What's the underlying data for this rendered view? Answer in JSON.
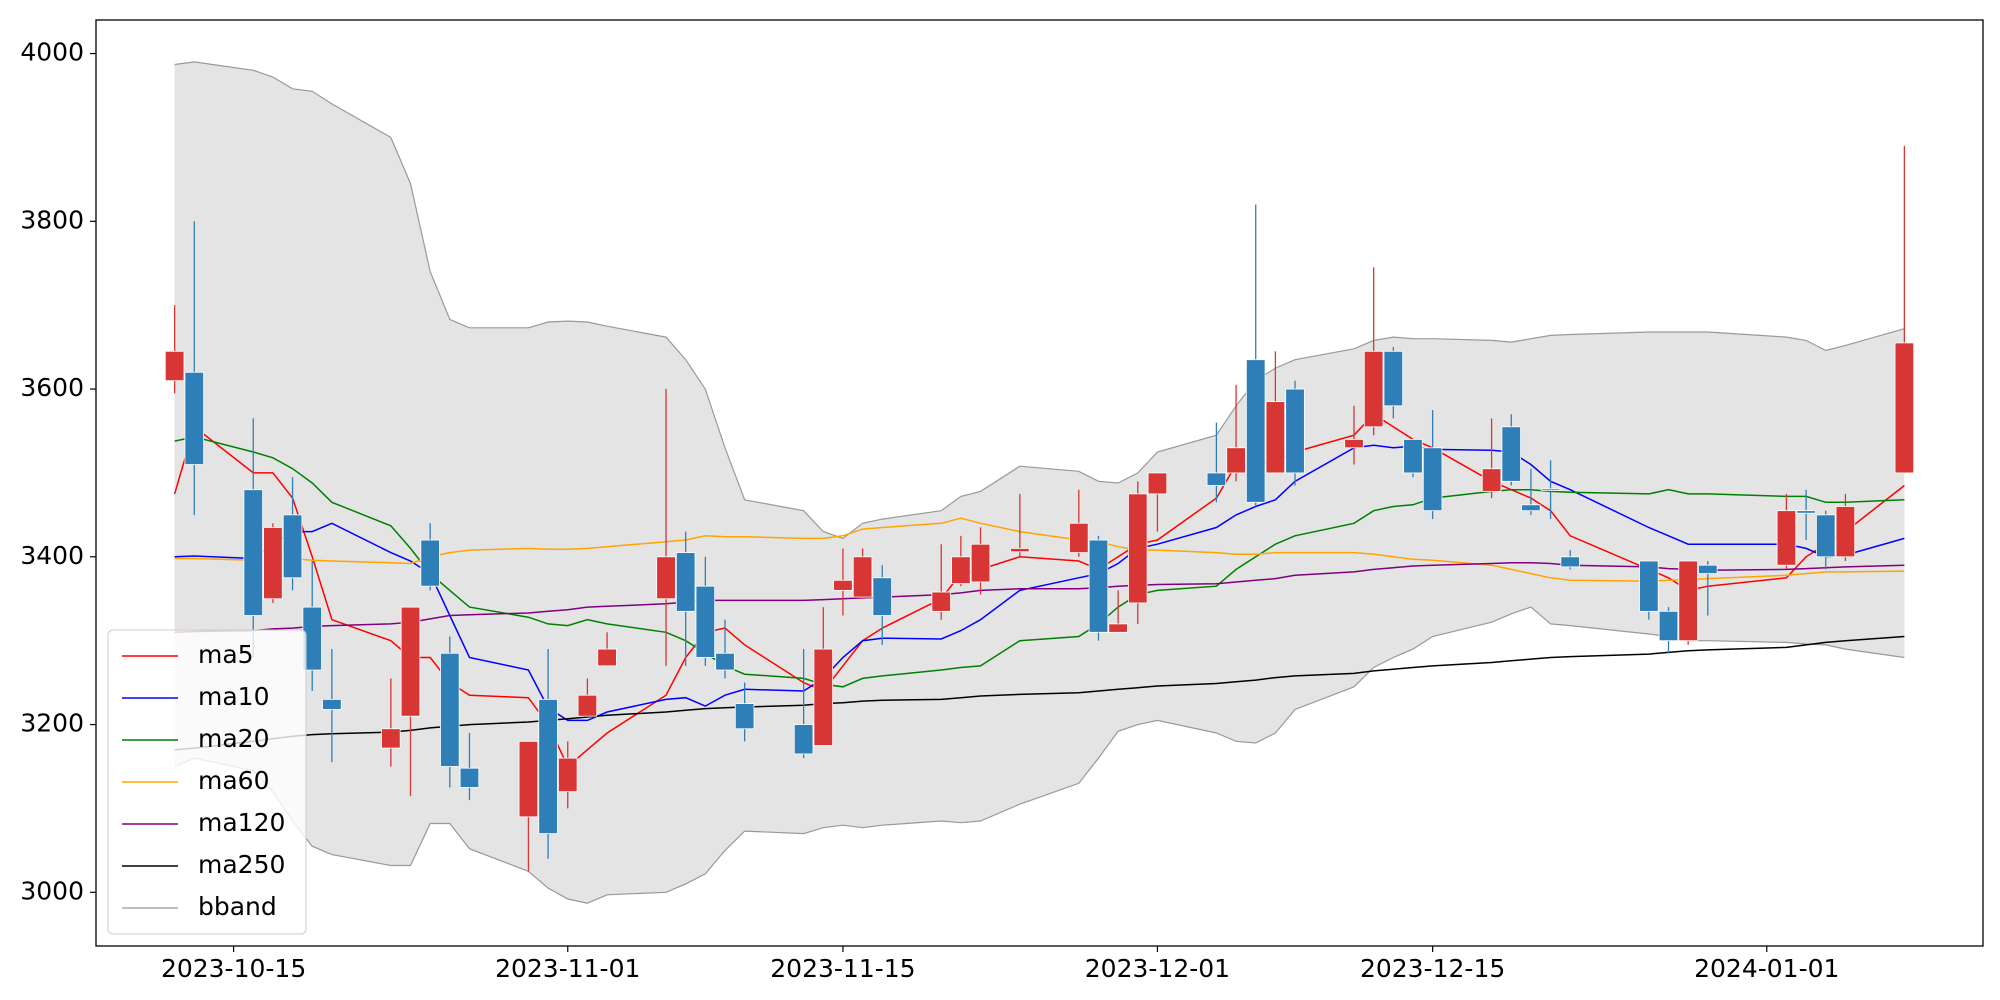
{
  "chart_data": {
    "type": "candlestick",
    "x": [
      "2023-10-12",
      "2023-10-13",
      "2023-10-16",
      "2023-10-17",
      "2023-10-18",
      "2023-10-19",
      "2023-10-20",
      "2023-10-23",
      "2023-10-24",
      "2023-10-25",
      "2023-10-26",
      "2023-10-27",
      "2023-10-30",
      "2023-10-31",
      "2023-11-01",
      "2023-11-02",
      "2023-11-03",
      "2023-11-06",
      "2023-11-07",
      "2023-11-08",
      "2023-11-09",
      "2023-11-10",
      "2023-11-13",
      "2023-11-14",
      "2023-11-15",
      "2023-11-16",
      "2023-11-17",
      "2023-11-20",
      "2023-11-21",
      "2023-11-22",
      "2023-11-24",
      "2023-11-27",
      "2023-11-28",
      "2023-11-29",
      "2023-11-30",
      "2023-12-01",
      "2023-12-04",
      "2023-12-05",
      "2023-12-06",
      "2023-12-07",
      "2023-12-08",
      "2023-12-11",
      "2023-12-12",
      "2023-12-13",
      "2023-12-14",
      "2023-12-15",
      "2023-12-18",
      "2023-12-19",
      "2023-12-20",
      "2023-12-21",
      "2023-12-22",
      "2023-12-26",
      "2023-12-27",
      "2023-12-28",
      "2023-12-29",
      "2024-01-02",
      "2024-01-03",
      "2024-01-04",
      "2024-01-05",
      "2024-01-08"
    ],
    "open": [
      3610,
      3620,
      3480,
      3350,
      3450,
      3340,
      3230,
      3172,
      3210,
      3420,
      3285,
      3148,
      3090,
      3230,
      3120,
      3210,
      3270,
      3350,
      3405,
      3365,
      3285,
      3225,
      3200,
      3175,
      3360,
      3352,
      3375,
      3335,
      3368,
      3370,
      3406,
      3405,
      3420,
      3310,
      3345,
      3475,
      3500,
      3500,
      3635,
      3500,
      3600,
      3530,
      3555,
      3645,
      3540,
      3530,
      3478,
      3555,
      3462,
      3481,
      3400,
      3395,
      3335,
      3300,
      3390,
      3390,
      3455,
      3450,
      3400,
      3500
    ],
    "high": [
      3700,
      3800,
      3565,
      3440,
      3495,
      3395,
      3290,
      3255,
      3340,
      3440,
      3305,
      3190,
      3180,
      3290,
      3180,
      3255,
      3310,
      3600,
      3430,
      3400,
      3325,
      3250,
      3290,
      3340,
      3410,
      3410,
      3390,
      3415,
      3425,
      3435,
      3475,
      3480,
      3425,
      3360,
      3490,
      3500,
      3560,
      3605,
      3820,
      3645,
      3610,
      3580,
      3745,
      3650,
      3540,
      3575,
      3565,
      3570,
      3505,
      3515,
      3408,
      3395,
      3340,
      3395,
      3395,
      3475,
      3480,
      3455,
      3475,
      3890
    ],
    "low": [
      3595,
      3450,
      3280,
      3345,
      3360,
      3240,
      3155,
      3150,
      3115,
      3360,
      3125,
      3110,
      3025,
      3040,
      3100,
      3210,
      3270,
      3270,
      3270,
      3270,
      3255,
      3180,
      3160,
      3175,
      3330,
      3350,
      3295,
      3325,
      3365,
      3355,
      3400,
      3400,
      3300,
      3310,
      3320,
      3430,
      3465,
      3490,
      3460,
      3500,
      3485,
      3510,
      3545,
      3565,
      3495,
      3445,
      3470,
      3485,
      3450,
      3445,
      3385,
      3325,
      3285,
      3295,
      3330,
      3385,
      3420,
      3385,
      3395,
      3500
    ],
    "close": [
      3645,
      3510,
      3330,
      3435,
      3375,
      3265,
      3218,
      3195,
      3340,
      3365,
      3150,
      3125,
      3180,
      3070,
      3160,
      3235,
      3290,
      3400,
      3335,
      3280,
      3265,
      3195,
      3165,
      3290,
      3372,
      3400,
      3330,
      3358,
      3400,
      3415,
      3410,
      3440,
      3310,
      3320,
      3475,
      3500,
      3485,
      3530,
      3465,
      3585,
      3500,
      3540,
      3645,
      3580,
      3500,
      3455,
      3505,
      3490,
      3455,
      3480,
      3388,
      3335,
      3300,
      3395,
      3380,
      3455,
      3452,
      3400,
      3460,
      3655
    ],
    "up_color": "#d83535",
    "down_color": "#2e7fb8",
    "series": [
      {
        "name": "ma5",
        "color": "#ff0000",
        "values": [
          3475,
          3555,
          3500,
          3500,
          3470,
          3400,
          3325,
          3300,
          3280,
          3280,
          3250,
          3235,
          3232,
          3200,
          3150,
          3170,
          3190,
          3235,
          3280,
          3310,
          3315,
          3295,
          3250,
          3240,
          3270,
          3300,
          3315,
          3350,
          3380,
          3385,
          3400,
          3395,
          3385,
          3400,
          3415,
          3420,
          3470,
          3510,
          3510,
          3515,
          3525,
          3545,
          3570,
          3555,
          3540,
          3530,
          3490,
          3480,
          3470,
          3455,
          3425,
          3385,
          3375,
          3360,
          3365,
          3375,
          3400,
          3415,
          3430,
          3485
        ]
      },
      {
        "name": "ma10",
        "color": "#0000ff",
        "values": [
          3400,
          3401,
          3398,
          3415,
          3430,
          3430,
          3440,
          3405,
          3395,
          3380,
          3330,
          3280,
          3265,
          3220,
          3205,
          3205,
          3215,
          3230,
          3232,
          3222,
          3235,
          3242,
          3240,
          3255,
          3280,
          3300,
          3303,
          3302,
          3312,
          3325,
          3360,
          3375,
          3380,
          3392,
          3410,
          3415,
          3435,
          3450,
          3460,
          3468,
          3490,
          3530,
          3533,
          3530,
          3532,
          3528,
          3527,
          3525,
          3510,
          3490,
          3480,
          3435,
          3425,
          3415,
          3415,
          3415,
          3410,
          3400,
          3402,
          3422
        ]
      },
      {
        "name": "ma20",
        "color": "#008000",
        "values": [
          3538,
          3543,
          3525,
          3518,
          3505,
          3488,
          3465,
          3437,
          3410,
          3380,
          3360,
          3340,
          3328,
          3320,
          3318,
          3325,
          3320,
          3310,
          3300,
          3285,
          3270,
          3260,
          3255,
          3248,
          3245,
          3255,
          3258,
          3265,
          3268,
          3270,
          3300,
          3305,
          3320,
          3340,
          3355,
          3360,
          3365,
          3385,
          3400,
          3415,
          3425,
          3440,
          3455,
          3460,
          3462,
          3470,
          3478,
          3480,
          3480,
          3478,
          3477,
          3475,
          3480,
          3475,
          3475,
          3472,
          3472,
          3465,
          3465,
          3468
        ]
      },
      {
        "name": "ma60",
        "color": "#ffa500",
        "values": [
          3398,
          3398,
          3396,
          3396,
          3398,
          3396,
          3395,
          3393,
          3392,
          3400,
          3405,
          3408,
          3410,
          3409,
          3409,
          3410,
          3412,
          3418,
          3420,
          3425,
          3424,
          3424,
          3422,
          3422,
          3425,
          3433,
          3435,
          3440,
          3446,
          3440,
          3430,
          3420,
          3418,
          3412,
          3408,
          3408,
          3405,
          3403,
          3403,
          3405,
          3405,
          3405,
          3403,
          3400,
          3397,
          3396,
          3390,
          3385,
          3380,
          3375,
          3372,
          3371,
          3372,
          3373,
          3374,
          3378,
          3380,
          3382,
          3382,
          3383
        ]
      },
      {
        "name": "ma120",
        "color": "#800080",
        "values": [
          3310,
          3311,
          3312,
          3314,
          3315,
          3317,
          3318,
          3320,
          3322,
          3326,
          3330,
          3331,
          3333,
          3335,
          3337,
          3340,
          3341,
          3344,
          3346,
          3348,
          3348,
          3348,
          3348,
          3349,
          3350,
          3351,
          3352,
          3355,
          3357,
          3360,
          3362,
          3362,
          3363,
          3365,
          3366,
          3367,
          3368,
          3370,
          3372,
          3374,
          3378,
          3382,
          3385,
          3387,
          3389,
          3390,
          3392,
          3393,
          3393,
          3392,
          3390,
          3388,
          3386,
          3385,
          3384,
          3385,
          3386,
          3387,
          3388,
          3390
        ]
      },
      {
        "name": "ma250",
        "color": "#000000",
        "values": [
          3170,
          3172,
          3180,
          3183,
          3186,
          3188,
          3189,
          3191,
          3193,
          3196,
          3198,
          3200,
          3203,
          3205,
          3207,
          3209,
          3211,
          3215,
          3217,
          3219,
          3220,
          3221,
          3223,
          3225,
          3226,
          3228,
          3229,
          3230,
          3232,
          3234,
          3236,
          3238,
          3240,
          3242,
          3244,
          3246,
          3249,
          3251,
          3253,
          3256,
          3258,
          3261,
          3264,
          3266,
          3268,
          3270,
          3274,
          3276,
          3278,
          3280,
          3281,
          3284,
          3286,
          3288,
          3289,
          3292,
          3295,
          3298,
          3300,
          3305
        ]
      }
    ],
    "bband": {
      "name": "bband",
      "color": "#999999",
      "fill": "#e4e4e4",
      "upper": [
        3987,
        3990,
        3980,
        3972,
        3958,
        3955,
        3940,
        3900,
        3845,
        3740,
        3683,
        3673,
        3673,
        3680,
        3681,
        3680,
        3675,
        3662,
        3635,
        3600,
        3530,
        3468,
        3455,
        3430,
        3422,
        3440,
        3445,
        3455,
        3472,
        3478,
        3508,
        3502,
        3490,
        3488,
        3500,
        3525,
        3545,
        3580,
        3610,
        3625,
        3635,
        3648,
        3658,
        3662,
        3660,
        3660,
        3658,
        3656,
        3660,
        3664,
        3665,
        3668,
        3668,
        3668,
        3668,
        3662,
        3658,
        3646,
        3652,
        3672
      ],
      "lower": [
        3150,
        3160,
        3145,
        3120,
        3085,
        3055,
        3045,
        3032,
        3032,
        3082,
        3082,
        3052,
        3025,
        3005,
        2992,
        2987,
        2997,
        3000,
        3010,
        3022,
        3050,
        3073,
        3070,
        3077,
        3080,
        3077,
        3080,
        3085,
        3083,
        3085,
        3105,
        3130,
        3160,
        3192,
        3200,
        3205,
        3190,
        3180,
        3178,
        3190,
        3218,
        3245,
        3268,
        3280,
        3290,
        3305,
        3322,
        3332,
        3340,
        3320,
        3318,
        3308,
        3305,
        3300,
        3300,
        3298,
        3296,
        3295,
        3290,
        3280
      ]
    },
    "xlim": [
      "2023-10-08",
      "2024-01-12"
    ],
    "xticks": [
      "2023-10-15",
      "2023-11-01",
      "2023-11-15",
      "2023-12-01",
      "2023-12-15",
      "2024-01-01"
    ],
    "ylim": [
      2936,
      4040
    ],
    "yticks": [
      3000,
      3200,
      3400,
      3600,
      3800,
      4000
    ],
    "legend": "lower left"
  }
}
